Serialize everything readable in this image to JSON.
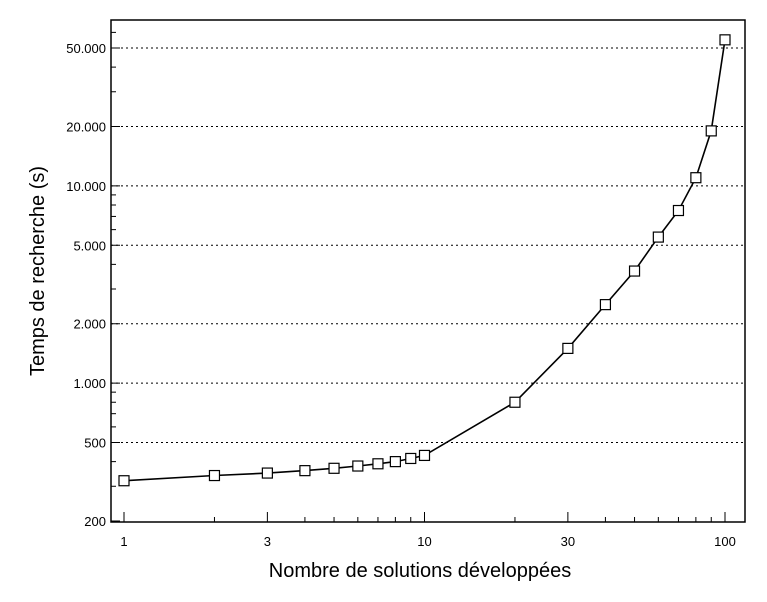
{
  "chart_data": {
    "type": "line",
    "title": "",
    "xlabel": "Nombre de solutions développées",
    "ylabel": "Temps de recherche (s)",
    "x_scale": "log",
    "y_scale": "log",
    "xlim": [
      1,
      100
    ],
    "ylim": [
      200,
      70000
    ],
    "grid": "horizontal dotted lines at y major ticks",
    "marker": "open-square",
    "x_ticks": [
      1,
      3,
      10,
      30,
      100
    ],
    "x_tick_labels": [
      "1",
      "3",
      "10",
      "30",
      "100"
    ],
    "y_ticks": [
      200,
      500,
      1000,
      2000,
      5000,
      10000,
      20000,
      50000
    ],
    "y_tick_labels": [
      "200",
      "500",
      "1.000",
      "2.000",
      "5.000",
      "10.000",
      "20.000",
      "50.000"
    ],
    "series": [
      {
        "x": [
          1,
          2,
          3,
          4,
          5,
          6,
          7,
          8,
          9,
          10,
          20,
          30,
          40,
          50,
          60,
          70,
          80,
          90,
          100
        ],
        "y": [
          320,
          340,
          350,
          360,
          370,
          380,
          390,
          400,
          415,
          430,
          800,
          1500,
          2500,
          3700,
          5500,
          7500,
          11000,
          19000,
          55000
        ]
      }
    ],
    "colors": {
      "line": "#000000",
      "marker_fill": "#ffffff",
      "grid": "#000000"
    }
  }
}
